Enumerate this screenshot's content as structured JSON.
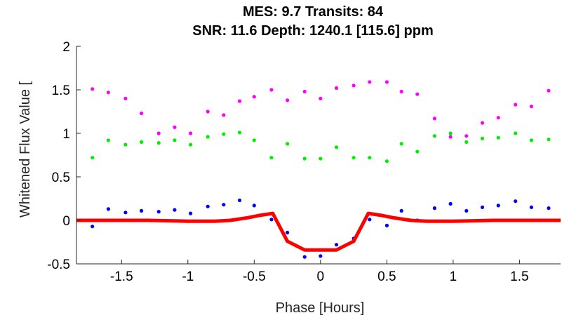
{
  "chart_data": {
    "type": "scatter",
    "title_lines": [
      "MES: 9.7   Transits: 84",
      "SNR: 11.6   Depth: 1240.1 [115.6] ppm"
    ],
    "xlabel": "Phase [Hours]",
    "ylabel": "Whitened Flux Value [",
    "xlim": [
      -1.84,
      1.81
    ],
    "ylim": [
      -0.5,
      2
    ],
    "x_ticks": [
      -1.5,
      -1,
      -0.5,
      0,
      0.5,
      1,
      1.5
    ],
    "x_tick_labels": [
      "-1.5",
      "-1",
      "-0.5",
      "0",
      "0.5",
      "1",
      "1.5"
    ],
    "y_ticks": [
      -0.5,
      0,
      0.5,
      1,
      1.5,
      2
    ],
    "y_tick_labels": [
      "-0.5",
      "0",
      "0.5",
      "1",
      "1.5",
      "2"
    ],
    "grid": false,
    "series": [
      {
        "color": "#ff00ff",
        "type": "scatter",
        "x": [
          -1.72,
          -1.6,
          -1.47,
          -1.35,
          -1.22,
          -1.1,
          -0.98,
          -0.85,
          -0.73,
          -0.61,
          -0.5,
          -0.37,
          -0.25,
          -0.12,
          0.0,
          0.12,
          0.25,
          0.37,
          0.5,
          0.61,
          0.73,
          0.86,
          0.98,
          1.1,
          1.22,
          1.34,
          1.47,
          1.59,
          1.72
        ],
        "y": [
          1.51,
          1.47,
          1.4,
          1.23,
          1.0,
          1.07,
          1.0,
          1.25,
          1.21,
          1.37,
          1.42,
          1.5,
          1.38,
          1.48,
          1.4,
          1.52,
          1.55,
          1.59,
          1.59,
          1.48,
          1.45,
          1.17,
          0.96,
          0.97,
          1.12,
          1.18,
          1.33,
          1.31,
          1.49
        ]
      },
      {
        "color": "#00ee00",
        "type": "scatter",
        "x": [
          -1.72,
          -1.6,
          -1.47,
          -1.35,
          -1.22,
          -1.1,
          -0.98,
          -0.85,
          -0.73,
          -0.61,
          -0.5,
          -0.37,
          -0.25,
          -0.12,
          0.0,
          0.12,
          0.25,
          0.37,
          0.5,
          0.61,
          0.73,
          0.86,
          0.98,
          1.1,
          1.22,
          1.34,
          1.47,
          1.59,
          1.72
        ],
        "y": [
          0.72,
          0.92,
          0.87,
          0.9,
          0.89,
          0.92,
          0.87,
          0.96,
          0.99,
          1.01,
          0.92,
          0.72,
          0.88,
          0.71,
          0.71,
          0.84,
          0.72,
          0.72,
          0.68,
          0.88,
          0.79,
          0.97,
          1.0,
          0.9,
          0.94,
          0.95,
          1.0,
          0.92,
          0.93
        ]
      },
      {
        "color": "#0000ff",
        "type": "scatter",
        "x": [
          -1.72,
          -1.6,
          -1.47,
          -1.35,
          -1.22,
          -1.1,
          -0.98,
          -0.85,
          -0.73,
          -0.61,
          -0.5,
          -0.37,
          -0.25,
          -0.12,
          0.0,
          0.12,
          0.25,
          0.37,
          0.5,
          0.61,
          0.73,
          0.86,
          0.98,
          1.1,
          1.22,
          1.34,
          1.47,
          1.59,
          1.72
        ],
        "y": [
          -0.07,
          0.13,
          0.09,
          0.11,
          0.1,
          0.12,
          0.08,
          0.16,
          0.18,
          0.23,
          0.17,
          0.01,
          -0.14,
          -0.42,
          -0.41,
          -0.28,
          -0.21,
          0.01,
          -0.06,
          0.11,
          0.0,
          0.14,
          0.19,
          0.11,
          0.15,
          0.17,
          0.22,
          0.15,
          0.14
        ]
      },
      {
        "color": "#ff0000",
        "type": "line",
        "x": [
          -1.84,
          -1.6,
          -1.3,
          -1.0,
          -0.8,
          -0.68,
          -0.55,
          -0.45,
          -0.36,
          -0.25,
          -0.12,
          0.0,
          0.12,
          0.25,
          0.36,
          0.45,
          0.55,
          0.68,
          0.8,
          1.0,
          1.3,
          1.6,
          1.81
        ],
        "y": [
          0.0,
          0.0,
          0.0,
          -0.01,
          -0.01,
          0.0,
          0.03,
          0.06,
          0.08,
          -0.24,
          -0.34,
          -0.34,
          -0.34,
          -0.24,
          0.08,
          0.06,
          0.03,
          0.0,
          -0.01,
          -0.01,
          0.0,
          0.0,
          0.0
        ]
      }
    ]
  }
}
